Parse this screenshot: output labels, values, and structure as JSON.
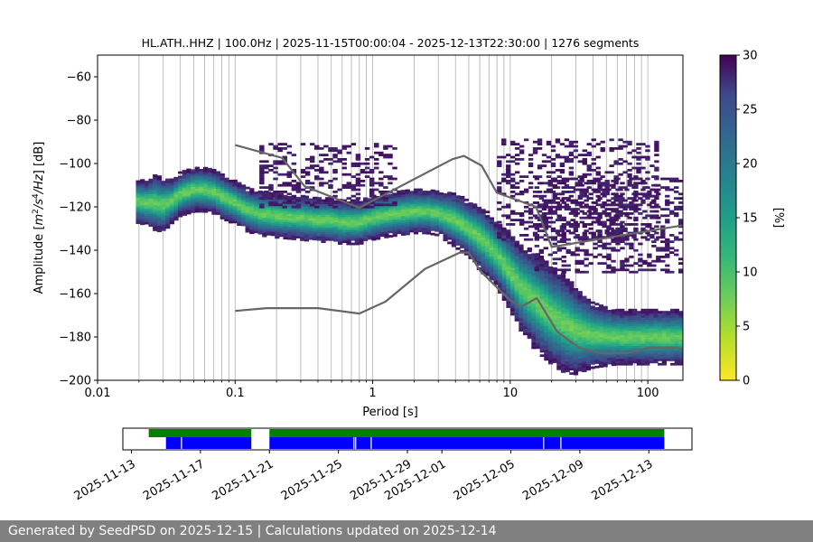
{
  "chart_data": [
    {
      "type": "heatmap",
      "title": "HL.ATH..HHZ | 100.0Hz | 2025-11-15T00:00:04 - 2025-12-13T22:30:00 | 1276 segments",
      "xlabel": "Period [s]",
      "ylabel_prefix": "Amplitude [",
      "ylabel_math": [
        "m",
        "2",
        "/s",
        "4",
        "/Hz",
        "] [dB]"
      ],
      "x_scale": "log",
      "xlim": [
        0.01,
        180
      ],
      "ylim": [
        -200,
        -50
      ],
      "x_ticks": [
        0.01,
        0.1,
        1,
        10,
        100
      ],
      "x_tick_labels": [
        "0.01",
        "0.1",
        "1",
        "10",
        "100"
      ],
      "y_ticks": [
        -200,
        -180,
        -160,
        -140,
        -120,
        -100,
        -80,
        -60
      ],
      "y_tick_labels": [
        "−200",
        "−180",
        "−160",
        "−140",
        "−120",
        "−100",
        "−80",
        "−60"
      ],
      "grid": "vertical minor+major on x",
      "colorbar": {
        "label": "[%]",
        "range": [
          0,
          30
        ],
        "ticks": [
          0,
          5,
          10,
          15,
          20,
          25,
          30
        ],
        "tick_labels": [
          "0",
          "5",
          "10",
          "15",
          "20",
          "25",
          "30"
        ],
        "colormap": "viridis"
      },
      "mode_curve": {
        "period": [
          0.019,
          0.022,
          0.026,
          0.03,
          0.035,
          0.04,
          0.045,
          0.05,
          0.06,
          0.07,
          0.08,
          0.1,
          0.12,
          0.15,
          0.2,
          0.3,
          0.4,
          0.5,
          0.6,
          0.8,
          1.0,
          1.2,
          1.5,
          2.0,
          2.5,
          3.0,
          4.0,
          5.0,
          6.0,
          7.0,
          8.0,
          10,
          12,
          15,
          20,
          25,
          30,
          40,
          60,
          100,
          180
        ],
        "db": [
          -117,
          -118,
          -118,
          -119,
          -117,
          -114,
          -113,
          -112,
          -112,
          -113,
          -115,
          -118,
          -121,
          -123,
          -124,
          -125,
          -126,
          -126,
          -127,
          -127,
          -125,
          -124,
          -123,
          -122,
          -122,
          -123,
          -126,
          -130,
          -134,
          -138,
          -142,
          -150,
          -157,
          -163,
          -170,
          -174,
          -177,
          -179,
          -180,
          -180,
          -180
        ],
        "spread_db": [
          4,
          4,
          5,
          5,
          4,
          4,
          4,
          4,
          4,
          4,
          4,
          4,
          4,
          4,
          4,
          4,
          4,
          4,
          4,
          4,
          4,
          4,
          4,
          4,
          4,
          4,
          5,
          5,
          6,
          6,
          6,
          7,
          8,
          9,
          9,
          9,
          8,
          6,
          5,
          5,
          5
        ]
      },
      "outlier_ranges": [
        {
          "period": [
            0.15,
            1.5
          ],
          "db": [
            -120,
            -91
          ]
        },
        {
          "period": [
            8,
            120
          ],
          "db": [
            -135,
            -89
          ]
        },
        {
          "period": [
            15,
            180
          ],
          "db": [
            -150,
            -106
          ]
        }
      ],
      "reference_curves": [
        {
          "name": "",
          "period": [
            0.1,
            0.22,
            0.32,
            0.8,
            3.8,
            4.6,
            6.2,
            8.0,
            15.4,
            20,
            180
          ],
          "db": [
            -91.5,
            -97.4,
            -110.5,
            -120.4,
            -98.0,
            -96.5,
            -101.0,
            -113.5,
            -120.0,
            -138.5,
            -128.5
          ]
        },
        {
          "name": "",
          "period": [
            0.1,
            0.17,
            0.4,
            0.8,
            1.24,
            2.4,
            4.3,
            5.0,
            6.0,
            10,
            12,
            15.6,
            21.9,
            31.6,
            45,
            70,
            101,
            154,
            180
          ],
          "db": [
            -168.0,
            -166.7,
            -166.7,
            -169.2,
            -163.7,
            -148.6,
            -141.1,
            -141.1,
            -149.3,
            -163.2,
            -166.1,
            -162.1,
            -177.5,
            -185.0,
            -187.5,
            -187.5,
            -185.0,
            -185.0,
            -185.6
          ]
        }
      ]
    },
    {
      "type": "timeline",
      "x_tick_labels": [
        "2025-11-13",
        "2025-11-17",
        "2025-11-21",
        "2025-11-25",
        "2025-11-29",
        "2025-12-01",
        "2025-12-05",
        "2025-12-09",
        "2025-12-13"
      ],
      "x_tick_days": [
        2,
        6,
        10,
        14,
        18,
        20,
        24,
        28,
        32
      ],
      "xlim_days": [
        1.5,
        34.5
      ],
      "data_available": {
        "color": "#008000",
        "spans_days": [
          [
            3.0,
            8.95
          ],
          [
            10.0,
            32.9
          ]
        ]
      },
      "psd_used": {
        "color": "#0000ff",
        "spans_days": [
          [
            4.0,
            8.95
          ],
          [
            10.0,
            32.9
          ]
        ],
        "gaps_days": [
          4.9,
          14.9,
          15.0,
          15.9,
          25.9,
          26.9
        ]
      }
    }
  ],
  "footer": {
    "text": "Generated by SeedPSD on 2025-12-15 | Calculations updated on 2025-12-14"
  }
}
